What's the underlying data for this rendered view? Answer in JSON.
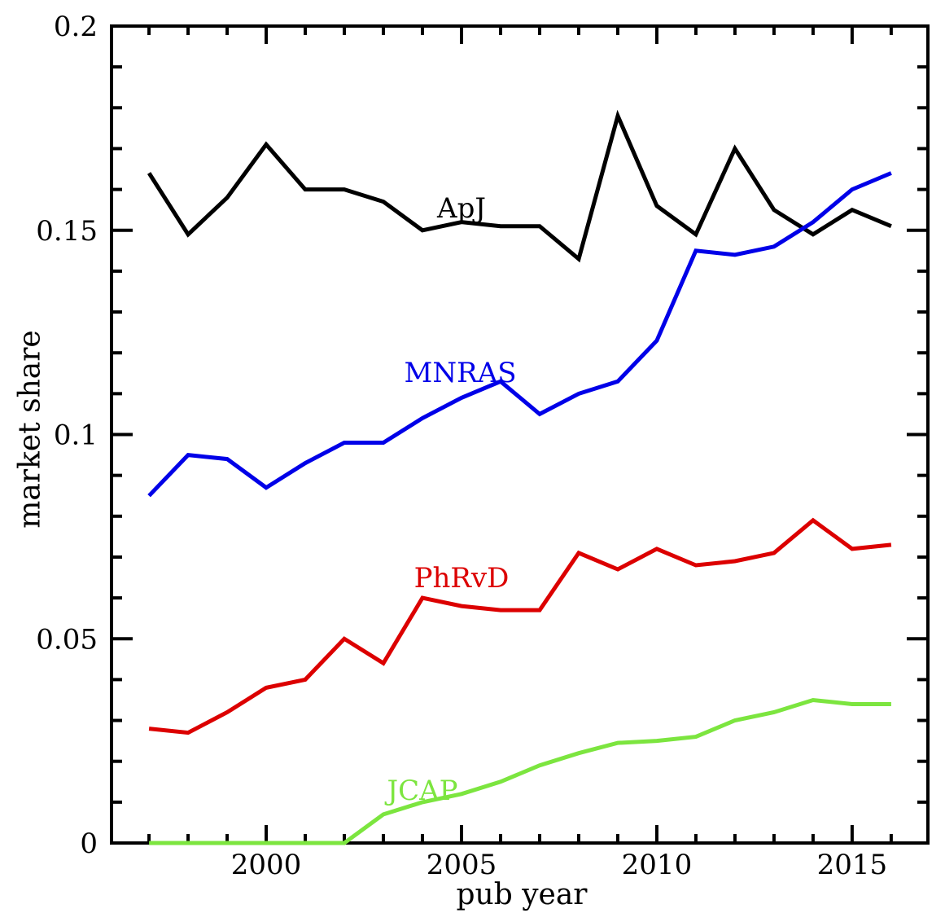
{
  "figure": {
    "background_color": "#ffffff",
    "axis_color": "#000000"
  },
  "chart_data": {
    "type": "line",
    "title": "",
    "xlabel": "pub year",
    "ylabel": "market share",
    "grid": false,
    "legend": "inline-labels-on-lines",
    "xlim": [
      1996.04,
      2016.94
    ],
    "ylim": [
      0,
      0.2
    ],
    "x_minor_tick_step": 1,
    "y_minor_tick_step": 0.01,
    "x_labeled_ticks": [
      {
        "value": 2000,
        "label": "2000"
      },
      {
        "value": 2005,
        "label": "2005"
      },
      {
        "value": 2010,
        "label": "2010"
      },
      {
        "value": 2015,
        "label": "2015"
      }
    ],
    "y_labeled_ticks": [
      {
        "value": 0,
        "label": "0"
      },
      {
        "value": 0.05,
        "label": "0.05"
      },
      {
        "value": 0.1,
        "label": "0.1"
      },
      {
        "value": 0.15,
        "label": "0.15"
      },
      {
        "value": 0.2,
        "label": "0.2"
      }
    ],
    "x": [
      1997,
      1998,
      1999,
      2000,
      2001,
      2002,
      2003,
      2004,
      2005,
      2006,
      2007,
      2008,
      2009,
      2010,
      2011,
      2012,
      2013,
      2014,
      2015,
      2016
    ],
    "series": [
      {
        "name": "ApJ",
        "color": "#000000",
        "label_x": 2005.0,
        "label_y": 0.1553,
        "values": [
          0.164,
          0.149,
          0.158,
          0.171,
          0.16,
          0.16,
          0.157,
          0.15,
          0.152,
          0.151,
          0.151,
          0.143,
          0.178,
          0.156,
          0.149,
          0.17,
          0.155,
          0.149,
          0.155,
          0.151
        ]
      },
      {
        "name": "MNRAS",
        "color": "#0000e8",
        "label_x": 2004.97,
        "label_y": 0.1151,
        "values": [
          0.085,
          0.095,
          0.094,
          0.087,
          0.093,
          0.098,
          0.098,
          0.104,
          0.109,
          0.113,
          0.105,
          0.11,
          0.113,
          0.123,
          0.145,
          0.144,
          0.146,
          0.152,
          0.16,
          0.164
        ]
      },
      {
        "name": "PhRvD",
        "color": "#dc0000",
        "label_x": 2005.0,
        "label_y": 0.0648,
        "values": [
          0.028,
          0.027,
          0.032,
          0.038,
          0.04,
          0.05,
          0.044,
          0.06,
          0.058,
          0.057,
          0.057,
          0.071,
          0.067,
          0.072,
          0.068,
          0.069,
          0.071,
          0.079,
          0.072,
          0.073
        ]
      },
      {
        "name": "JCAP",
        "color": "#7ce53f",
        "label_x": 2004.0,
        "label_y": 0.0128,
        "values": [
          0,
          0,
          0,
          0,
          0,
          0,
          0.007,
          0.01,
          0.012,
          0.015,
          0.019,
          0.022,
          0.0245,
          0.025,
          0.026,
          0.03,
          0.032,
          0.035,
          0.034,
          0.034
        ]
      }
    ]
  }
}
